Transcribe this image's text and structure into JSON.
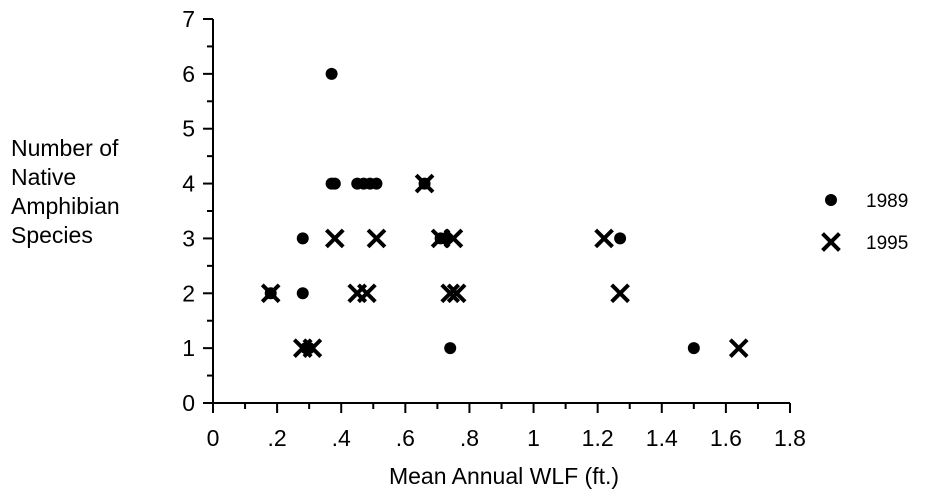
{
  "chart_data": {
    "type": "scatter",
    "xlabel": "Mean Annual WLF (ft.)",
    "ylabel_lines": [
      "Number of",
      "Native",
      "Amphibian",
      "Species"
    ],
    "xlim": [
      0,
      1.8
    ],
    "ylim": [
      0,
      7
    ],
    "x_ticks": [
      {
        "value": 0,
        "label": "0"
      },
      {
        "value": 0.2,
        "label": ".2"
      },
      {
        "value": 0.4,
        "label": ".4"
      },
      {
        "value": 0.6,
        "label": ".6"
      },
      {
        "value": 0.8,
        "label": ".8"
      },
      {
        "value": 1.0,
        "label": "1"
      },
      {
        "value": 1.2,
        "label": "1.2"
      },
      {
        "value": 1.4,
        "label": "1.4"
      },
      {
        "value": 1.6,
        "label": "1.6"
      },
      {
        "value": 1.8,
        "label": "1.8"
      }
    ],
    "y_ticks": [
      {
        "value": 0,
        "label": "0"
      },
      {
        "value": 1,
        "label": "1"
      },
      {
        "value": 2,
        "label": "2"
      },
      {
        "value": 3,
        "label": "3"
      },
      {
        "value": 4,
        "label": "4"
      },
      {
        "value": 5,
        "label": "5"
      },
      {
        "value": 6,
        "label": "6"
      },
      {
        "value": 7,
        "label": "7"
      }
    ],
    "grid": false,
    "legend_position": "right",
    "series": [
      {
        "name": "1989",
        "marker": "dot",
        "color": "#000000",
        "points": [
          [
            0.18,
            2
          ],
          [
            0.28,
            2
          ],
          [
            0.28,
            3
          ],
          [
            0.29,
            1
          ],
          [
            0.3,
            1
          ],
          [
            0.37,
            6
          ],
          [
            0.37,
            4
          ],
          [
            0.38,
            4
          ],
          [
            0.45,
            4
          ],
          [
            0.47,
            4
          ],
          [
            0.49,
            4
          ],
          [
            0.51,
            4
          ],
          [
            0.66,
            4
          ],
          [
            0.71,
            3
          ],
          [
            0.73,
            3
          ],
          [
            0.74,
            1
          ],
          [
            1.27,
            3
          ],
          [
            1.5,
            1
          ]
        ]
      },
      {
        "name": "1995",
        "marker": "x",
        "color": "#000000",
        "points": [
          [
            0.18,
            2
          ],
          [
            0.28,
            1
          ],
          [
            0.31,
            1
          ],
          [
            0.38,
            3
          ],
          [
            0.45,
            2
          ],
          [
            0.48,
            2
          ],
          [
            0.51,
            3
          ],
          [
            0.66,
            4
          ],
          [
            0.71,
            3
          ],
          [
            0.74,
            2
          ],
          [
            0.75,
            3
          ],
          [
            0.76,
            2
          ],
          [
            1.22,
            3
          ],
          [
            1.27,
            2
          ],
          [
            1.64,
            1
          ]
        ]
      }
    ]
  }
}
